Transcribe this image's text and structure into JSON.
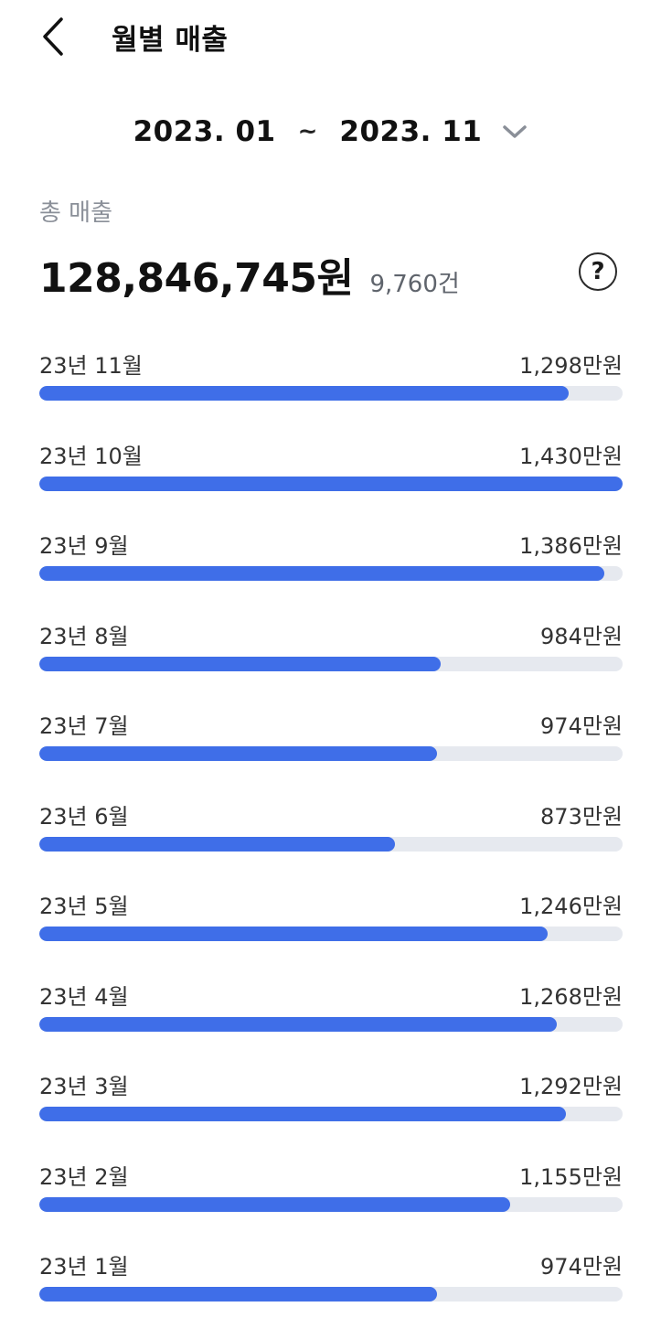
{
  "header": {
    "title": "월별 매출",
    "back_icon": "chevron-left-icon"
  },
  "date_range": {
    "start": "2023. 01",
    "separator": "~",
    "end": "2023. 11",
    "dropdown_icon": "chevron-down-icon"
  },
  "summary": {
    "label": "총 매출",
    "amount": "128,846,745원",
    "count": "9,760건",
    "help_label": "?"
  },
  "colors": {
    "accent": "#3f6ee8",
    "track": "#e6e9ef"
  },
  "max_value": 1430,
  "months": [
    {
      "label": "23년 11월",
      "value": 1298,
      "display": "1,298만원"
    },
    {
      "label": "23년 10월",
      "value": 1430,
      "display": "1,430만원"
    },
    {
      "label": "23년 9월",
      "value": 1386,
      "display": "1,386만원"
    },
    {
      "label": "23년 8월",
      "value": 984,
      "display": "984만원"
    },
    {
      "label": "23년 7월",
      "value": 974,
      "display": "974만원"
    },
    {
      "label": "23년 6월",
      "value": 873,
      "display": "873만원"
    },
    {
      "label": "23년 5월",
      "value": 1246,
      "display": "1,246만원"
    },
    {
      "label": "23년 4월",
      "value": 1268,
      "display": "1,268만원"
    },
    {
      "label": "23년 3월",
      "value": 1292,
      "display": "1,292만원"
    },
    {
      "label": "23년 2월",
      "value": 1155,
      "display": "1,155만원"
    },
    {
      "label": "23년 1월",
      "value": 974,
      "display": "974만원"
    }
  ]
}
